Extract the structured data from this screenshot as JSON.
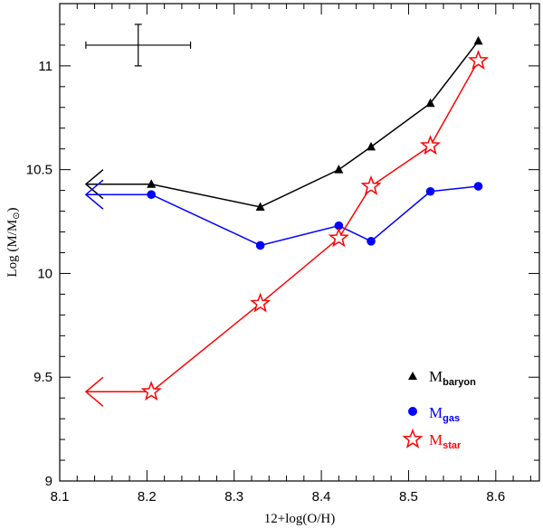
{
  "chart_data": {
    "type": "line",
    "xlabel": "12+log(O/H)",
    "ylabel": "Log (M/M",
    "ylabel_symbol": "⊙",
    "ylabel_close": ")",
    "xlim": [
      8.1,
      8.65
    ],
    "ylim": [
      9.0,
      11.3
    ],
    "x_ticks": [
      8.1,
      8.2,
      8.3,
      8.4,
      8.5,
      8.6
    ],
    "x_tick_labels": [
      "8.1",
      "8.2",
      "8.3",
      "8.4",
      "8.5",
      "8.6"
    ],
    "y_ticks": [
      9,
      9.5,
      10,
      10.5,
      11
    ],
    "y_tick_labels": [
      "9",
      "9.5",
      "10",
      "10.5",
      "11"
    ],
    "x_minor_step": 0.02,
    "y_minor_step": 0.1,
    "grid": false,
    "legend_placement": "lower-right",
    "series": [
      {
        "name": "M",
        "subscript": "baryon",
        "color": "#000000",
        "marker": "triangle",
        "x": [
          8.205,
          8.33,
          8.42,
          8.457,
          8.525,
          8.58
        ],
        "y": [
          10.43,
          10.32,
          10.5,
          10.61,
          10.82,
          11.12
        ],
        "upper_limit": {
          "from_x": 8.205,
          "to_x": 8.13,
          "y": 10.43
        }
      },
      {
        "name": "M",
        "subscript": "gas",
        "color": "#0000ff",
        "marker": "circle",
        "x": [
          8.205,
          8.33,
          8.42,
          8.457,
          8.525,
          8.58
        ],
        "y": [
          10.38,
          10.135,
          10.23,
          10.155,
          10.395,
          10.42
        ],
        "upper_limit": {
          "from_x": 8.205,
          "to_x": 8.13,
          "y": 10.38
        }
      },
      {
        "name": "M",
        "subscript": "star",
        "color": "#ff0000",
        "marker": "star",
        "x": [
          8.205,
          8.33,
          8.42,
          8.457,
          8.525,
          8.58
        ],
        "y": [
          9.43,
          9.855,
          10.17,
          10.42,
          10.615,
          11.025
        ],
        "upper_limit": {
          "from_x": 8.205,
          "to_x": 8.13,
          "y": 9.43
        }
      }
    ],
    "error_bar": {
      "x": 8.19,
      "y": 11.1,
      "x_err": 0.06,
      "y_err": 0.1
    }
  }
}
